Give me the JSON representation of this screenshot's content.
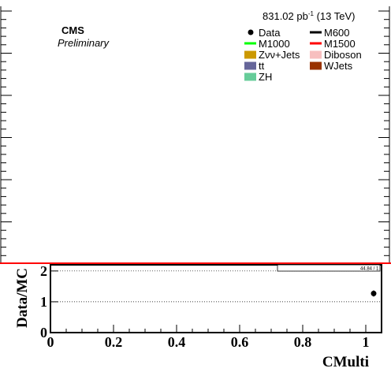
{
  "main": {
    "lumi_value": "831.02 pb",
    "lumi_exp": "-1",
    "lumi_energy": " (13 TeV)",
    "experiment": "CMS",
    "status": "Preliminary",
    "axis_range_label": "44.84 / 1"
  },
  "legend": {
    "entries": [
      {
        "label": "Data",
        "marker": "point",
        "color": "#000000"
      },
      {
        "label": "M600",
        "marker": "line",
        "color": "#000000"
      },
      {
        "label": "M1000",
        "marker": "line",
        "color": "#00ff00"
      },
      {
        "label": "M1500",
        "marker": "line",
        "color": "#ff0000"
      },
      {
        "label": "Zνν+Jets",
        "marker": "box",
        "color": "#cc9900"
      },
      {
        "label": "Diboson",
        "marker": "box",
        "color": "#f7bfbf"
      },
      {
        "label": "tt",
        "marker": "box",
        "color": "#66669a"
      },
      {
        "label": "WJets",
        "marker": "box",
        "color": "#993300"
      },
      {
        "label": "ZH",
        "marker": "box",
        "color": "#66cc99"
      }
    ]
  },
  "chart_data": [
    {
      "type": "scatter",
      "title": "",
      "ylabel": "",
      "series": [],
      "grid": false
    },
    {
      "type": "scatter",
      "xlabel": "CMulti",
      "ylabel": "Data/MC",
      "xlim": [
        0,
        1.05
      ],
      "ylim": [
        0,
        2.2
      ],
      "x_ticks": [
        "0",
        "0.2",
        "0.4",
        "0.6",
        "0.8",
        "1"
      ],
      "y_ticks": [
        "0",
        "1",
        "2"
      ],
      "reference_lines": [
        1,
        2
      ],
      "series": [
        {
          "name": "Data",
          "points": [
            {
              "x": 1.025,
              "y": 1.27,
              "yerr": 0.1
            }
          ]
        }
      ]
    }
  ],
  "colors": {
    "ratio_frame_line": "#ff0000",
    "axis": "#000000"
  }
}
